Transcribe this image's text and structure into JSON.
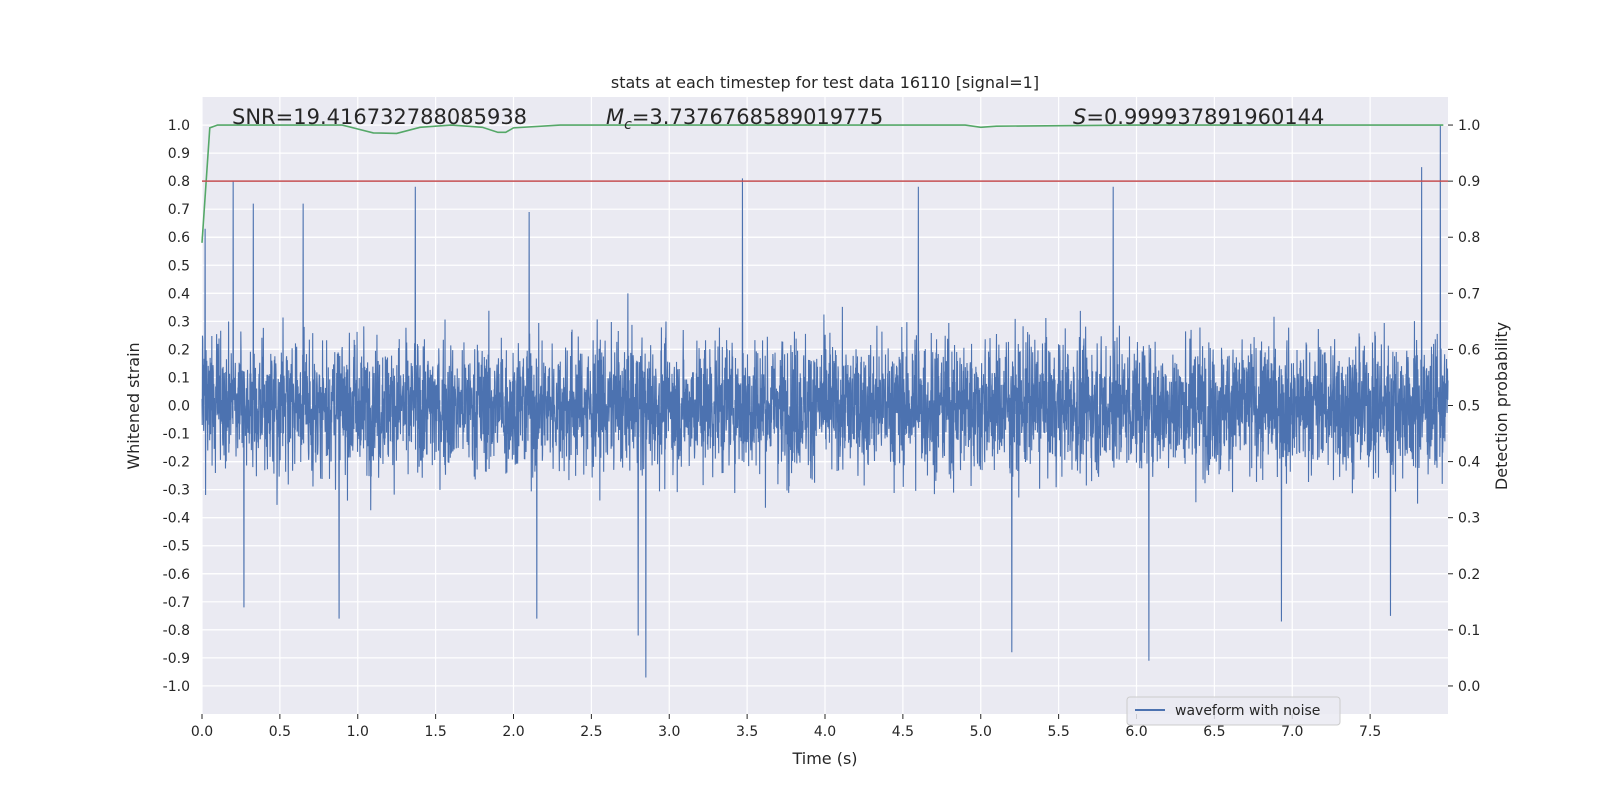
{
  "chart_data": {
    "type": "line",
    "title": "stats at each timestep for test data 16110 [signal=1]",
    "xlabel": "Time (s)",
    "ylabel": "Whitened strain",
    "y2label": "Detection probability",
    "xlim": [
      0.0,
      8.0
    ],
    "ylim": [
      -1.1,
      1.1
    ],
    "y2lim": [
      -0.05,
      1.05
    ],
    "xticks": [
      0.0,
      0.5,
      1.0,
      1.5,
      2.0,
      2.5,
      3.0,
      3.5,
      4.0,
      4.5,
      5.0,
      5.5,
      6.0,
      6.5,
      7.0,
      7.5
    ],
    "xtick_labels": [
      "0.0",
      "0.5",
      "1.0",
      "1.5",
      "2.0",
      "2.5",
      "3.0",
      "3.5",
      "4.0",
      "4.5",
      "5.0",
      "5.5",
      "6.0",
      "6.5",
      "7.0",
      "7.5"
    ],
    "yticks": [
      1.0,
      0.9,
      0.8,
      0.7,
      0.6,
      0.5,
      0.4,
      0.3,
      0.2,
      0.1,
      0.0,
      -0.1,
      -0.2,
      -0.3,
      -0.4,
      -0.5,
      -0.6,
      -0.7,
      -0.8,
      -0.9,
      -1.0
    ],
    "ytick_labels": [
      "1.0",
      "0.9",
      "0.8",
      "0.7",
      "0.6",
      "0.5",
      "0.4",
      "0.3",
      "0.2",
      "0.1",
      "0.0",
      "-0.1",
      "-0.2",
      "-0.3",
      "-0.4",
      "-0.5",
      "-0.6",
      "-0.7",
      "-0.8",
      "-0.9",
      "-1.0"
    ],
    "y2ticks": [
      1.0,
      0.9,
      0.8,
      0.7,
      0.6,
      0.5,
      0.4,
      0.3,
      0.2,
      0.1,
      0.0
    ],
    "y2tick_labels": [
      "1.0",
      "0.9",
      "0.8",
      "0.7",
      "0.6",
      "0.5",
      "0.4",
      "0.3",
      "0.2",
      "0.1",
      "0.0"
    ],
    "grid": true,
    "annotations": {
      "snr": "SNR=19.416732788085938",
      "mc_symbol": "M",
      "mc_subscript": "c",
      "mc_value": "=3.7376768589019775",
      "s_symbol": "S",
      "s_value": "=0.999937891960144"
    },
    "legend": {
      "placement": "lower-right",
      "entries": [
        "waveform with noise"
      ]
    },
    "series": [
      {
        "name": "waveform with noise",
        "axis": "left",
        "color": "#4c72b0",
        "kind": "noise-waveform",
        "duration_s": 8.0,
        "envelope_typical": [
          -0.48,
          0.48
        ],
        "envelope_peak": [
          -0.97,
          1.0
        ],
        "peaks": [
          {
            "x": 0.02,
            "y": 0.63
          },
          {
            "x": 0.2,
            "y": 0.8
          },
          {
            "x": 0.33,
            "y": 0.72
          },
          {
            "x": 0.65,
            "y": 0.72
          },
          {
            "x": 1.37,
            "y": 0.78
          },
          {
            "x": 2.1,
            "y": 0.69
          },
          {
            "x": 3.47,
            "y": 0.81
          },
          {
            "x": 4.6,
            "y": 0.78
          },
          {
            "x": 5.85,
            "y": 0.78
          },
          {
            "x": 7.83,
            "y": 0.85
          },
          {
            "x": 7.95,
            "y": 1.0
          },
          {
            "x": 0.27,
            "y": -0.72
          },
          {
            "x": 0.88,
            "y": -0.76
          },
          {
            "x": 2.15,
            "y": -0.76
          },
          {
            "x": 2.8,
            "y": -0.82
          },
          {
            "x": 2.85,
            "y": -0.97
          },
          {
            "x": 5.2,
            "y": -0.88
          },
          {
            "x": 6.08,
            "y": -0.91
          },
          {
            "x": 6.93,
            "y": -0.77
          },
          {
            "x": 7.63,
            "y": -0.75
          }
        ]
      },
      {
        "name": "",
        "axis": "right",
        "color": "#55a868",
        "kind": "detection-probability",
        "x": [
          0.0,
          0.05,
          0.1,
          0.3,
          0.9,
          1.0,
          1.1,
          1.25,
          1.4,
          1.6,
          1.8,
          1.9,
          1.95,
          2.0,
          2.3,
          4.9,
          5.0,
          5.1,
          6.0,
          7.97
        ],
        "y": [
          0.79,
          0.995,
          1.0,
          1.0,
          1.0,
          0.993,
          0.986,
          0.985,
          0.996,
          1.0,
          0.996,
          0.987,
          0.987,
          0.995,
          1.0,
          1.0,
          0.996,
          0.998,
          1.0,
          1.0
        ]
      },
      {
        "name": "",
        "axis": "right",
        "color": "#c44e52",
        "kind": "threshold",
        "y": 0.9
      }
    ]
  }
}
